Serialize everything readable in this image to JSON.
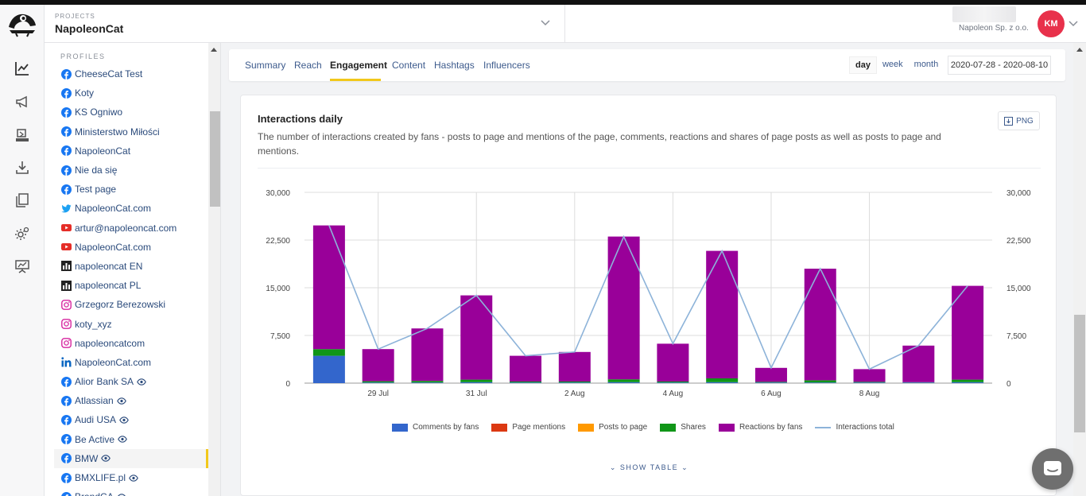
{
  "header": {
    "projects_label": "PROJECTS",
    "project_name": "NapoleonCat",
    "account_name": "Napoleon Sp. z o.o.",
    "avatar_initials": "KM"
  },
  "rail": {
    "icons": [
      "analytics-icon",
      "megaphone-icon",
      "publisher-icon",
      "download-icon",
      "reports-icon",
      "settings-icon",
      "presentation-icon"
    ]
  },
  "profiles": {
    "title": "PROFILES",
    "items": [
      {
        "label": "CheeseCat Test",
        "network": "facebook",
        "watched": false,
        "active": false
      },
      {
        "label": "Koty",
        "network": "facebook",
        "watched": false,
        "active": false
      },
      {
        "label": "KS Ogniwo",
        "network": "facebook",
        "watched": false,
        "active": false
      },
      {
        "label": "Ministerstwo Miłości",
        "network": "facebook",
        "watched": false,
        "active": false
      },
      {
        "label": "NapoleonCat",
        "network": "facebook",
        "watched": false,
        "active": false
      },
      {
        "label": "Nie da się",
        "network": "facebook",
        "watched": false,
        "active": false
      },
      {
        "label": "Test page",
        "network": "facebook",
        "watched": false,
        "active": false
      },
      {
        "label": "NapoleonCat.com",
        "network": "twitter",
        "watched": false,
        "active": false
      },
      {
        "label": "artur@napoleoncat.com",
        "network": "youtube",
        "watched": false,
        "active": false
      },
      {
        "label": "NapoleonCat.com",
        "network": "youtube",
        "watched": false,
        "active": false
      },
      {
        "label": "napoleoncat EN",
        "network": "insights",
        "watched": false,
        "active": false
      },
      {
        "label": "napoleoncat PL",
        "network": "insights",
        "watched": false,
        "active": false
      },
      {
        "label": "Grzegorz Berezowski",
        "network": "instagram",
        "watched": false,
        "active": false
      },
      {
        "label": "koty_xyz",
        "network": "instagram",
        "watched": false,
        "active": false
      },
      {
        "label": "napoleoncatcom",
        "network": "instagram",
        "watched": false,
        "active": false
      },
      {
        "label": "NapoleonCat.com",
        "network": "linkedin",
        "watched": false,
        "active": false
      },
      {
        "label": "Alior Bank SA",
        "network": "facebook",
        "watched": true,
        "active": false
      },
      {
        "label": "Atlassian",
        "network": "facebook",
        "watched": true,
        "active": false
      },
      {
        "label": "Audi USA",
        "network": "facebook",
        "watched": true,
        "active": false
      },
      {
        "label": "Be Active",
        "network": "facebook",
        "watched": true,
        "active": false
      },
      {
        "label": "BMW",
        "network": "facebook",
        "watched": true,
        "active": true
      },
      {
        "label": "BMXLIFE.pl",
        "network": "facebook",
        "watched": true,
        "active": false
      },
      {
        "label": "BrandCA",
        "network": "facebook",
        "watched": true,
        "active": false
      }
    ]
  },
  "tabs": {
    "items": [
      "Summary",
      "Reach",
      "Engagement",
      "Content",
      "Hashtags",
      "Influencers"
    ],
    "active": "Engagement"
  },
  "periods": {
    "items": [
      "day",
      "week",
      "month"
    ],
    "active": "day"
  },
  "date_range": "2020-07-28 - 2020-08-10",
  "card": {
    "title": "Interactions daily",
    "description": "The number of interactions created by fans - posts to page and mentions of the page, comments, reactions and shares of page posts as well as posts to page and mentions.",
    "png_label": "PNG",
    "show_table_label": "SHOW TABLE"
  },
  "colors": {
    "comments": "#3366cc",
    "mentions": "#dc3912",
    "posts": "#ff9900",
    "shares": "#109618",
    "reactions": "#990099",
    "total": "#8db3d9"
  },
  "chart_data": {
    "type": "bar",
    "stacked": true,
    "title": "Interactions daily",
    "categories": [
      "28 Jul",
      "29 Jul",
      "30 Jul",
      "31 Jul",
      "1 Aug",
      "2 Aug",
      "3 Aug",
      "4 Aug",
      "5 Aug",
      "6 Aug",
      "7 Aug",
      "8 Aug",
      "9 Aug",
      "10 Aug"
    ],
    "x_tick_labels": [
      "29 Jul",
      "31 Jul",
      "2 Aug",
      "4 Aug",
      "6 Aug",
      "8 Aug"
    ],
    "y_ticks": [
      "0",
      "7,500",
      "15,000",
      "22,500",
      "30,000"
    ],
    "ylim": [
      0,
      30000
    ],
    "series": [
      {
        "name": "Comments by fans",
        "key": "comments",
        "values": [
          4300,
          100,
          100,
          150,
          100,
          100,
          150,
          100,
          150,
          100,
          100,
          100,
          100,
          150
        ]
      },
      {
        "name": "Page mentions",
        "key": "mentions",
        "values": [
          0,
          0,
          0,
          0,
          0,
          0,
          0,
          0,
          0,
          0,
          0,
          0,
          0,
          0
        ]
      },
      {
        "name": "Posts to page",
        "key": "posts",
        "values": [
          0,
          0,
          0,
          0,
          0,
          0,
          0,
          0,
          0,
          0,
          0,
          0,
          0,
          0
        ]
      },
      {
        "name": "Shares",
        "key": "shares",
        "values": [
          1050,
          200,
          250,
          400,
          150,
          150,
          450,
          150,
          600,
          100,
          350,
          100,
          50,
          400
        ]
      },
      {
        "name": "Reactions by fans",
        "key": "reactions",
        "values": [
          19450,
          5050,
          8250,
          13250,
          4050,
          4650,
          22450,
          5950,
          20050,
          2200,
          17550,
          2000,
          5750,
          14750
        ]
      }
    ],
    "line": {
      "name": "Interactions total",
      "key": "total",
      "values": [
        24800,
        5350,
        8600,
        13800,
        4300,
        4900,
        23050,
        6200,
        20800,
        2400,
        18000,
        2200,
        5900,
        15300
      ]
    },
    "legend_position": "bottom"
  }
}
